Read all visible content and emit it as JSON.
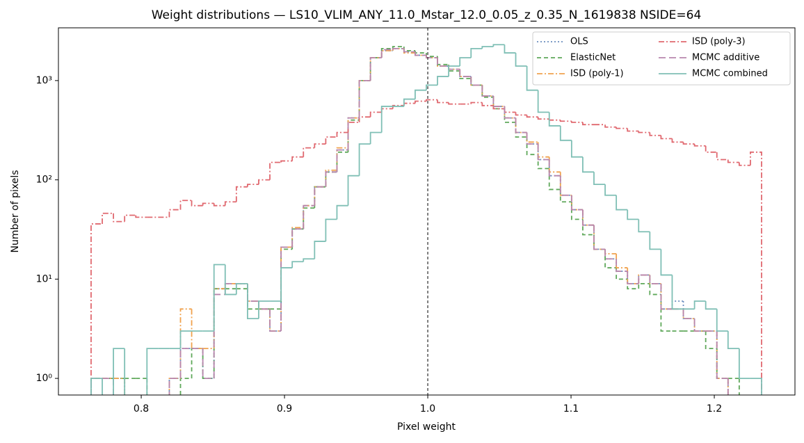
{
  "chart_data": {
    "type": "step-histogram",
    "title": "Weight distributions — LS10_VLIM_ANY_11.0_Mstar_12.0_0.05_z_0.35_N_1619838  NSIDE=64",
    "x_label": "Pixel weight",
    "y_label": "Number of pixels",
    "log_y": true,
    "legend": "upper right",
    "vline": 1.0,
    "xlim": [
      0.7422,
      1.2563
    ],
    "ylim": [
      0.68,
      3400
    ],
    "xticks": [
      0.8,
      0.9,
      {
        "value": 1,
        "label": "1.0"
      },
      1.1,
      1.2
    ],
    "yticks": [
      {
        "value": 1,
        "label": "10⁰"
      },
      {
        "value": 10,
        "label": "10¹"
      },
      {
        "value": 100,
        "label": "10²"
      },
      {
        "value": 1000,
        "label": "10³"
      }
    ],
    "bins": [
      0.765,
      0.7728,
      0.7806,
      0.7884,
      0.7962,
      0.804,
      0.8118,
      0.8196,
      0.8274,
      0.8352,
      0.843,
      0.8508,
      0.8586,
      0.8664,
      0.8742,
      0.882,
      0.8898,
      0.8976,
      0.9054,
      0.9132,
      0.921,
      0.9288,
      0.9366,
      0.9444,
      0.9522,
      0.96,
      0.9678,
      0.9756,
      0.9834,
      0.9912,
      0.999,
      1.0068,
      1.0146,
      1.0224,
      1.0302,
      1.038,
      1.0458,
      1.0536,
      1.0614,
      1.0692,
      1.077,
      1.0848,
      1.0926,
      1.1004,
      1.1082,
      1.116,
      1.1238,
      1.1316,
      1.1394,
      1.1472,
      1.155,
      1.1628,
      1.1706,
      1.1784,
      1.1862,
      1.194,
      1.2018,
      1.2096,
      1.2174,
      1.2252,
      1.233
    ],
    "series": [
      {
        "name": "OLS",
        "color": "#6c8ebf",
        "linestyle": "dotted",
        "values": [
          1,
          1,
          1,
          0,
          0,
          0,
          0,
          1,
          2,
          2,
          1,
          8,
          9,
          9,
          6,
          5,
          3,
          21,
          32,
          55,
          85,
          120,
          200,
          420,
          1000,
          1700,
          2000,
          2100,
          1950,
          1800,
          1700,
          1400,
          1300,
          1100,
          900,
          700,
          550,
          420,
          300,
          230,
          160,
          110,
          70,
          50,
          35,
          20,
          16,
          12,
          9,
          11,
          9,
          5,
          6,
          4,
          3,
          3,
          1,
          0,
          0,
          0
        ]
      },
      {
        "name": "ElasticNet",
        "color": "#5fa85a",
        "linestyle": "dashed",
        "values": [
          1,
          1,
          1,
          1,
          1,
          0,
          0,
          0,
          1,
          2,
          1,
          8,
          8,
          8,
          5,
          5,
          5,
          20,
          32,
          52,
          85,
          120,
          190,
          400,
          1000,
          1700,
          2100,
          2200,
          2000,
          1900,
          1750,
          1450,
          1250,
          1050,
          900,
          680,
          520,
          380,
          270,
          180,
          130,
          80,
          60,
          40,
          28,
          20,
          13,
          10,
          8,
          9,
          7,
          3,
          3,
          3,
          3,
          2,
          1,
          1,
          0,
          0
        ]
      },
      {
        "name": "ISD (poly-1)",
        "color": "#f0a24e",
        "linestyle": "dashdot",
        "values": [
          1,
          1,
          1,
          0,
          0,
          0,
          0,
          1,
          5,
          2,
          2,
          8,
          9,
          9,
          6,
          5,
          3,
          21,
          33,
          55,
          85,
          125,
          210,
          420,
          1000,
          1700,
          2000,
          2100,
          1900,
          1800,
          1700,
          1400,
          1300,
          1100,
          900,
          700,
          550,
          420,
          300,
          240,
          170,
          120,
          70,
          50,
          35,
          20,
          18,
          13,
          9,
          11,
          9,
          5,
          5,
          4,
          3,
          3,
          1,
          0,
          0,
          0
        ]
      },
      {
        "name": "ISD (poly-3)",
        "color": "#e0686f",
        "linestyle": "dashdot",
        "values": [
          36,
          46,
          38,
          44,
          42,
          42,
          42,
          50,
          62,
          55,
          58,
          55,
          60,
          85,
          90,
          100,
          150,
          155,
          170,
          210,
          230,
          270,
          300,
          380,
          430,
          480,
          520,
          560,
          590,
          620,
          640,
          600,
          580,
          580,
          600,
          560,
          520,
          480,
          450,
          430,
          410,
          400,
          390,
          380,
          360,
          360,
          340,
          330,
          310,
          300,
          280,
          260,
          240,
          230,
          220,
          190,
          160,
          150,
          140,
          190
        ]
      },
      {
        "name": "MCMC additive",
        "color": "#b886ad",
        "linestyle": "longdash",
        "values": [
          1,
          1,
          0,
          0,
          0,
          0,
          0,
          1,
          2,
          2,
          1,
          7,
          9,
          9,
          6,
          5,
          3,
          21,
          32,
          55,
          85,
          120,
          200,
          420,
          1000,
          1700,
          2050,
          2100,
          1950,
          1800,
          1700,
          1400,
          1300,
          1100,
          900,
          700,
          550,
          420,
          300,
          230,
          160,
          110,
          70,
          50,
          35,
          20,
          16,
          12,
          9,
          11,
          9,
          5,
          5,
          4,
          3,
          3,
          1,
          0,
          0,
          0
        ]
      },
      {
        "name": "MCMC combined",
        "color": "#7fbfb5",
        "linestyle": "solid",
        "values": [
          1,
          0,
          2,
          0,
          0,
          2,
          2,
          2,
          3,
          3,
          3,
          14,
          7,
          9,
          4,
          6,
          6,
          13,
          15,
          16,
          24,
          40,
          55,
          110,
          230,
          300,
          550,
          550,
          650,
          800,
          900,
          1100,
          1400,
          1700,
          2100,
          2200,
          2300,
          1900,
          1400,
          800,
          480,
          350,
          250,
          170,
          120,
          90,
          70,
          50,
          40,
          30,
          20,
          11,
          5,
          5,
          6,
          5,
          3,
          2,
          1,
          1
        ]
      }
    ]
  }
}
